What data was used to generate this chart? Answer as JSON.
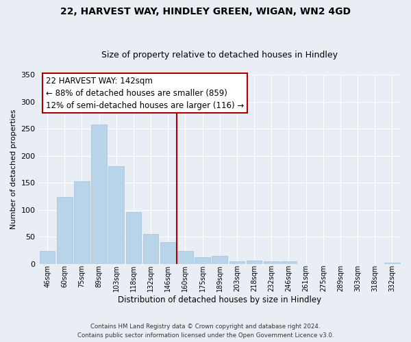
{
  "title1": "22, HARVEST WAY, HINDLEY GREEN, WIGAN, WN2 4GD",
  "title2": "Size of property relative to detached houses in Hindley",
  "xlabel": "Distribution of detached houses by size in Hindley",
  "ylabel": "Number of detached properties",
  "bar_labels": [
    "46sqm",
    "60sqm",
    "75sqm",
    "89sqm",
    "103sqm",
    "118sqm",
    "132sqm",
    "146sqm",
    "160sqm",
    "175sqm",
    "189sqm",
    "203sqm",
    "218sqm",
    "232sqm",
    "246sqm",
    "261sqm",
    "275sqm",
    "289sqm",
    "303sqm",
    "318sqm",
    "332sqm"
  ],
  "bar_values": [
    24,
    123,
    152,
    257,
    181,
    95,
    55,
    40,
    23,
    12,
    14,
    5,
    6,
    4,
    5,
    0,
    0,
    0,
    0,
    0,
    2
  ],
  "bar_color": "#b8d4e8",
  "bar_edge_color": "#a0c0de",
  "vline_x": 7.5,
  "vline_color": "#aa0000",
  "annotation_title": "22 HARVEST WAY: 142sqm",
  "annotation_line1": "← 88% of detached houses are smaller (859)",
  "annotation_line2": "12% of semi-detached houses are larger (116) →",
  "box_edge_color": "#aa0000",
  "footnote1": "Contains HM Land Registry data © Crown copyright and database right 2024.",
  "footnote2": "Contains public sector information licensed under the Open Government Licence v3.0.",
  "ylim": [
    0,
    350
  ],
  "yticks": [
    0,
    50,
    100,
    150,
    200,
    250,
    300,
    350
  ],
  "bg_color": "#e8eef4",
  "plot_bg_color": "#e8eef4",
  "grid_color": "#ffffff",
  "title1_fontsize": 10,
  "title2_fontsize": 9
}
